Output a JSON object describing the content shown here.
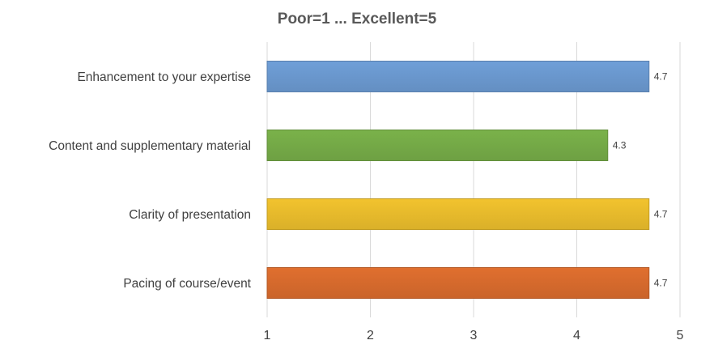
{
  "chart_data": {
    "type": "bar",
    "orientation": "horizontal",
    "title": "Poor=1 ... Excellent=5",
    "xlabel": "",
    "ylabel": "",
    "categories": [
      "Enhancement to your expertise",
      "Content and supplementary material",
      "Clarity of presentation",
      "Pacing of course/event"
    ],
    "values": [
      4.7,
      4.3,
      4.7,
      4.7
    ],
    "data_labels": [
      "4.7",
      "4.3",
      "4.7",
      "4.7"
    ],
    "colors": [
      "#6f9fd8",
      "#7ab24a",
      "#f2c32e",
      "#e06f2f"
    ],
    "xlim": [
      1,
      5
    ],
    "xticks": [
      1,
      2,
      3,
      4,
      5
    ],
    "xtick_labels": [
      "1",
      "2",
      "3",
      "4",
      "5"
    ],
    "grid": true,
    "legend": "none"
  }
}
